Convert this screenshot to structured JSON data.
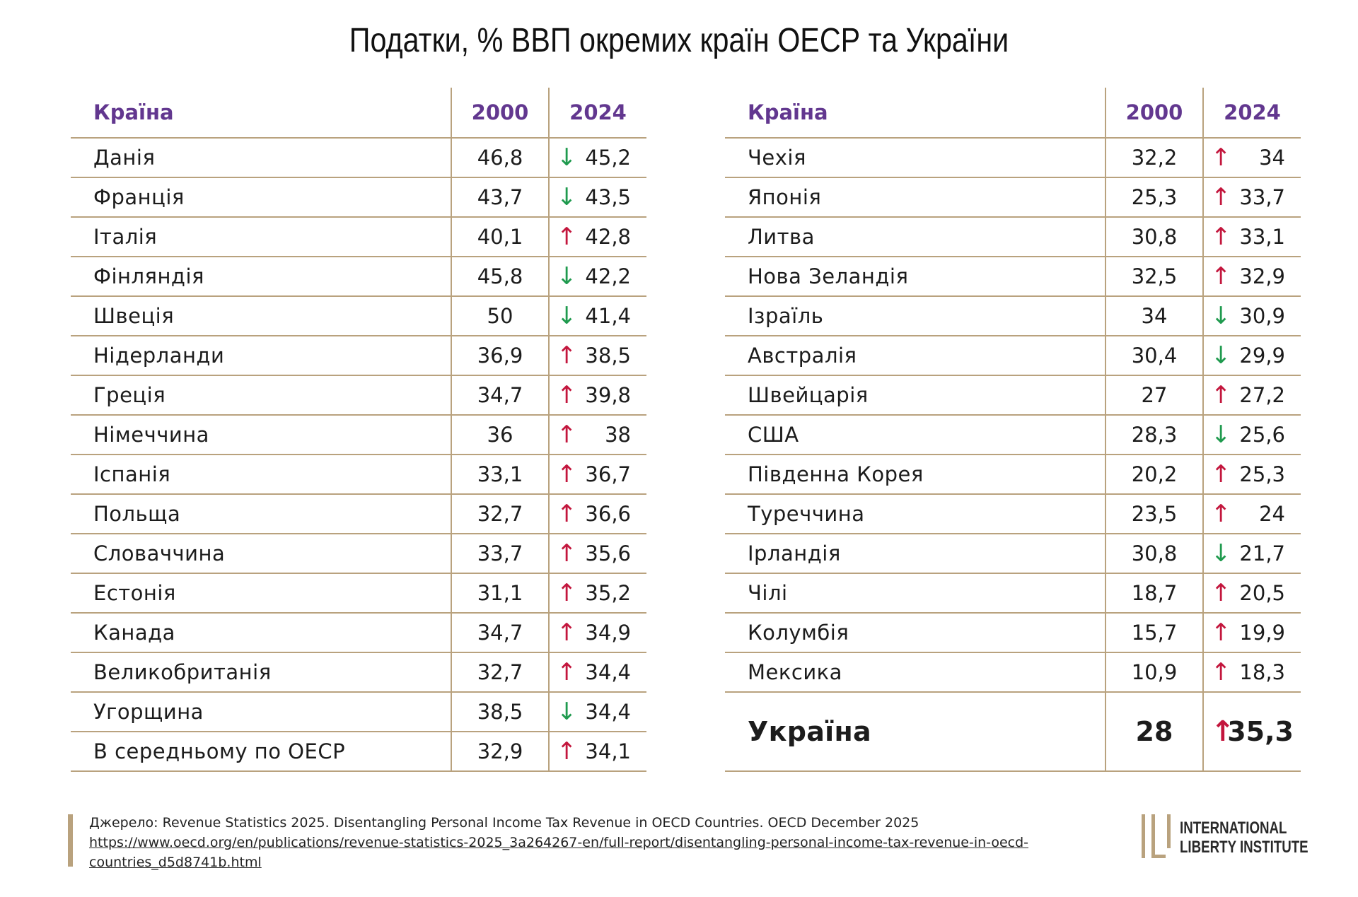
{
  "chart_data": {
    "type": "table",
    "title": "Податки, % ВВП окремих країн ОЕСР та України",
    "columns": [
      "Країна",
      "2000",
      "2024"
    ],
    "left": [
      {
        "country": "Данія",
        "v2000": "46,8",
        "v2024": "45,2",
        "trend": "down"
      },
      {
        "country": "Франція",
        "v2000": "43,7",
        "v2024": "43,5",
        "trend": "down"
      },
      {
        "country": "Італія",
        "v2000": "40,1",
        "v2024": "42,8",
        "trend": "up"
      },
      {
        "country": "Фінляндія",
        "v2000": "45,8",
        "v2024": "42,2",
        "trend": "down"
      },
      {
        "country": "Швеція",
        "v2000": "50",
        "v2024": "41,4",
        "trend": "down"
      },
      {
        "country": "Нідерланди",
        "v2000": "36,9",
        "v2024": "38,5",
        "trend": "up"
      },
      {
        "country": "Греція",
        "v2000": "34,7",
        "v2024": "39,8",
        "trend": "up"
      },
      {
        "country": "Німеччина",
        "v2000": "36",
        "v2024": "38",
        "trend": "up"
      },
      {
        "country": "Іспанія",
        "v2000": "33,1",
        "v2024": "36,7",
        "trend": "up"
      },
      {
        "country": "Польща",
        "v2000": "32,7",
        "v2024": "36,6",
        "trend": "up"
      },
      {
        "country": "Словаччина",
        "v2000": "33,7",
        "v2024": "35,6",
        "trend": "up"
      },
      {
        "country": "Естонія",
        "v2000": "31,1",
        "v2024": "35,2",
        "trend": "up"
      },
      {
        "country": "Канада",
        "v2000": "34,7",
        "v2024": "34,9",
        "trend": "up"
      },
      {
        "country": "Великобританія",
        "v2000": "32,7",
        "v2024": "34,4",
        "trend": "up"
      },
      {
        "country": "Угорщина",
        "v2000": "38,5",
        "v2024": "34,4",
        "trend": "down"
      },
      {
        "country": "В середньому по ОЕСР",
        "v2000": "32,9",
        "v2024": "34,1",
        "trend": "up"
      }
    ],
    "right": [
      {
        "country": "Чехія",
        "v2000": "32,2",
        "v2024": "34",
        "trend": "up"
      },
      {
        "country": "Японія",
        "v2000": "25,3",
        "v2024": "33,7",
        "trend": "up"
      },
      {
        "country": "Литва",
        "v2000": "30,8",
        "v2024": "33,1",
        "trend": "up"
      },
      {
        "country": "Нова Зеландія",
        "v2000": "32,5",
        "v2024": "32,9",
        "trend": "up"
      },
      {
        "country": "Ізраїль",
        "v2000": "34",
        "v2024": "30,9",
        "trend": "down"
      },
      {
        "country": "Австралія",
        "v2000": "30,4",
        "v2024": "29,9",
        "trend": "down"
      },
      {
        "country": "Швейцарія",
        "v2000": "27",
        "v2024": "27,2",
        "trend": "up"
      },
      {
        "country": "США",
        "v2000": "28,3",
        "v2024": "25,6",
        "trend": "down"
      },
      {
        "country": "Південна Корея",
        "v2000": "20,2",
        "v2024": "25,3",
        "trend": "up"
      },
      {
        "country": "Туреччина",
        "v2000": "23,5",
        "v2024": "24",
        "trend": "up"
      },
      {
        "country": "Ірландія",
        "v2000": "30,8",
        "v2024": "21,7",
        "trend": "down"
      },
      {
        "country": "Чілі",
        "v2000": "18,7",
        "v2024": "20,5",
        "trend": "up"
      },
      {
        "country": "Колумбія",
        "v2000": "15,7",
        "v2024": "19,9",
        "trend": "up"
      },
      {
        "country": "Мексика",
        "v2000": "10,9",
        "v2024": "18,3",
        "trend": "up"
      }
    ],
    "highlight": {
      "country": "Україна",
      "v2000": "28",
      "v2024": "35,3",
      "trend": "up"
    }
  },
  "source": {
    "text": "Джерело: Revenue Statistics 2025. Disentangling Personal Income Tax Revenue in OECD Countries. OECD December 2025",
    "url": "https://www.oecd.org/en/publications/revenue-statistics-2025_3a264267-en/full-report/disentangling-personal-income-tax-revenue-in-oecd-countries_d5d8741b.html"
  },
  "logo": {
    "line1": "INTERNATIONAL",
    "line2": "LIBERTY INSTITUTE"
  },
  "colors": {
    "header": "#62378f",
    "rule": "#b9a27e",
    "up": "#c3163d",
    "down": "#1f9a4e"
  },
  "arrows": {
    "up": "↑",
    "down": "↓"
  }
}
